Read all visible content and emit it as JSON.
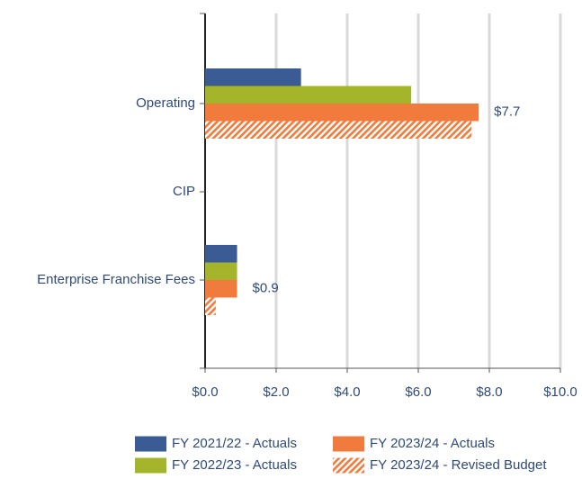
{
  "chart_data": {
    "type": "bar",
    "orientation": "horizontal",
    "categories": [
      "Operating",
      "CIP",
      "Enterprise Franchise Fees"
    ],
    "series": [
      {
        "name": "FY 2021/22 - Actuals",
        "color": "#3a5b93",
        "values": [
          2.7,
          0,
          0.9
        ]
      },
      {
        "name": "FY 2022/23 - Actuals",
        "color": "#a4b52b",
        "values": [
          5.8,
          0,
          0.9
        ]
      },
      {
        "name": "FY 2023/24 - Actuals",
        "color": "#f07b3c",
        "values": [
          7.7,
          0,
          0.9
        ],
        "value_labels": [
          "$7.7",
          null,
          "$0.9"
        ]
      },
      {
        "name": "FY 2023/24 - Revised Budget",
        "color": "#f07b3c",
        "hatch": true,
        "values": [
          7.5,
          0,
          0.3
        ]
      }
    ],
    "xlim": [
      0,
      10
    ],
    "xticks": [
      {
        "value": 0,
        "label": "$0.0"
      },
      {
        "value": 2,
        "label": "$2.0"
      },
      {
        "value": 4,
        "label": "$4.0"
      },
      {
        "value": 6,
        "label": "$6.0"
      },
      {
        "value": 8,
        "label": "$8.0"
      },
      {
        "value": 10,
        "label": "$10.0"
      }
    ],
    "grid": true,
    "legend": "bottom"
  }
}
